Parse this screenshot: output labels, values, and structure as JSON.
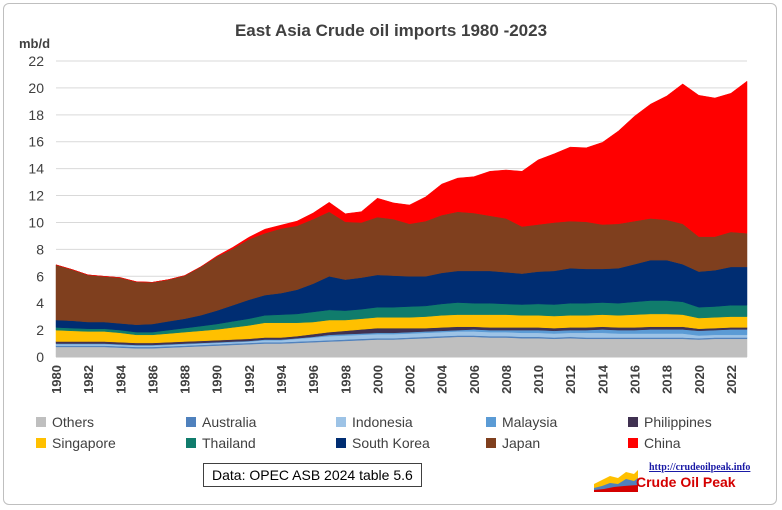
{
  "chart_data": {
    "type": "area",
    "stacked": true,
    "title": "East Asia Crude oil imports 1980 -2023",
    "ylabel": "mb/d",
    "ylim": [
      0,
      22
    ],
    "yticks": [
      0,
      2,
      4,
      6,
      8,
      10,
      12,
      14,
      16,
      18,
      20,
      22
    ],
    "x": [
      1980,
      1981,
      1982,
      1983,
      1984,
      1985,
      1986,
      1987,
      1988,
      1989,
      1990,
      1991,
      1992,
      1993,
      1994,
      1995,
      1996,
      1997,
      1998,
      1999,
      2000,
      2001,
      2002,
      2003,
      2004,
      2005,
      2006,
      2007,
      2008,
      2009,
      2010,
      2011,
      2012,
      2013,
      2014,
      2015,
      2016,
      2017,
      2018,
      2019,
      2020,
      2021,
      2022,
      2023
    ],
    "xticks": [
      "1980",
      "1982",
      "1984",
      "1986",
      "1988",
      "1990",
      "1992",
      "1994",
      "1996",
      "1998",
      "2000",
      "2002",
      "2004",
      "2006",
      "2008",
      "2010",
      "2012",
      "2014",
      "2016",
      "2018",
      "2020",
      "2022"
    ],
    "legend_position": "bottom",
    "grid": true,
    "series": [
      {
        "name": "Others",
        "color": "#bfbfbf",
        "values": [
          0.75,
          0.75,
          0.75,
          0.75,
          0.7,
          0.65,
          0.65,
          0.7,
          0.75,
          0.8,
          0.85,
          0.9,
          0.95,
          1.0,
          1.0,
          1.05,
          1.1,
          1.15,
          1.2,
          1.25,
          1.3,
          1.3,
          1.35,
          1.4,
          1.45,
          1.5,
          1.5,
          1.45,
          1.45,
          1.4,
          1.4,
          1.35,
          1.4,
          1.35,
          1.35,
          1.35,
          1.35,
          1.35,
          1.35,
          1.35,
          1.3,
          1.35,
          1.35,
          1.35
        ]
      },
      {
        "name": "Australia",
        "color": "#4f81bd",
        "values": [
          0.1,
          0.1,
          0.1,
          0.1,
          0.1,
          0.1,
          0.1,
          0.1,
          0.1,
          0.1,
          0.1,
          0.1,
          0.1,
          0.1,
          0.1,
          0.1,
          0.1,
          0.1,
          0.1,
          0.1,
          0.1,
          0.1,
          0.1,
          0.1,
          0.1,
          0.1,
          0.1,
          0.1,
          0.1,
          0.1,
          0.1,
          0.1,
          0.1,
          0.1,
          0.1,
          0.1,
          0.1,
          0.1,
          0.1,
          0.1,
          0.1,
          0.1,
          0.1,
          0.1
        ]
      },
      {
        "name": "Indonesia",
        "color": "#9dc3e6",
        "values": [
          0.1,
          0.1,
          0.1,
          0.1,
          0.1,
          0.1,
          0.1,
          0.1,
          0.1,
          0.1,
          0.1,
          0.1,
          0.1,
          0.15,
          0.15,
          0.2,
          0.25,
          0.3,
          0.3,
          0.3,
          0.3,
          0.3,
          0.3,
          0.3,
          0.3,
          0.3,
          0.3,
          0.3,
          0.3,
          0.3,
          0.3,
          0.3,
          0.3,
          0.35,
          0.35,
          0.3,
          0.3,
          0.3,
          0.3,
          0.3,
          0.2,
          0.2,
          0.2,
          0.2
        ]
      },
      {
        "name": "Malaysia",
        "color": "#5b9bd5",
        "values": [
          0.05,
          0.05,
          0.05,
          0.05,
          0.05,
          0.05,
          0.05,
          0.05,
          0.05,
          0.05,
          0.05,
          0.05,
          0.05,
          0.05,
          0.05,
          0.05,
          0.05,
          0.1,
          0.1,
          0.1,
          0.1,
          0.1,
          0.1,
          0.1,
          0.1,
          0.1,
          0.15,
          0.15,
          0.15,
          0.2,
          0.2,
          0.2,
          0.2,
          0.2,
          0.25,
          0.25,
          0.25,
          0.3,
          0.3,
          0.3,
          0.35,
          0.35,
          0.4,
          0.4
        ]
      },
      {
        "name": "Philippines",
        "color": "#403151",
        "values": [
          0.15,
          0.15,
          0.15,
          0.15,
          0.15,
          0.15,
          0.15,
          0.15,
          0.15,
          0.15,
          0.15,
          0.15,
          0.15,
          0.15,
          0.15,
          0.15,
          0.2,
          0.2,
          0.25,
          0.3,
          0.35,
          0.35,
          0.3,
          0.25,
          0.25,
          0.25,
          0.2,
          0.2,
          0.2,
          0.2,
          0.2,
          0.2,
          0.2,
          0.2,
          0.2,
          0.2,
          0.2,
          0.2,
          0.2,
          0.2,
          0.15,
          0.15,
          0.15,
          0.15
        ]
      },
      {
        "name": "Singapore",
        "color": "#ffc000",
        "values": [
          0.85,
          0.8,
          0.75,
          0.75,
          0.7,
          0.6,
          0.6,
          0.65,
          0.7,
          0.75,
          0.8,
          0.9,
          1.0,
          1.1,
          1.1,
          1.0,
          0.9,
          0.9,
          0.8,
          0.8,
          0.8,
          0.8,
          0.8,
          0.85,
          0.9,
          0.9,
          0.9,
          0.95,
          0.95,
          0.9,
          0.9,
          0.9,
          0.9,
          0.9,
          0.9,
          0.9,
          0.95,
          0.95,
          0.95,
          0.9,
          0.8,
          0.8,
          0.8,
          0.8
        ]
      },
      {
        "name": "Thailand",
        "color": "#107c6c",
        "values": [
          0.2,
          0.2,
          0.2,
          0.2,
          0.2,
          0.2,
          0.2,
          0.25,
          0.3,
          0.35,
          0.4,
          0.45,
          0.5,
          0.55,
          0.6,
          0.65,
          0.75,
          0.75,
          0.7,
          0.7,
          0.75,
          0.75,
          0.8,
          0.8,
          0.85,
          0.9,
          0.85,
          0.85,
          0.8,
          0.8,
          0.85,
          0.85,
          0.9,
          0.9,
          0.9,
          0.9,
          0.95,
          1.0,
          1.0,
          0.95,
          0.8,
          0.8,
          0.85,
          0.85
        ]
      },
      {
        "name": "South Korea",
        "color": "#002d72",
        "values": [
          0.55,
          0.55,
          0.5,
          0.5,
          0.5,
          0.55,
          0.6,
          0.65,
          0.7,
          0.8,
          1.0,
          1.2,
          1.4,
          1.5,
          1.6,
          1.8,
          2.1,
          2.5,
          2.3,
          2.35,
          2.4,
          2.35,
          2.25,
          2.2,
          2.3,
          2.35,
          2.4,
          2.4,
          2.35,
          2.3,
          2.4,
          2.5,
          2.6,
          2.55,
          2.5,
          2.6,
          2.8,
          3.0,
          3.0,
          2.8,
          2.65,
          2.7,
          2.85,
          2.85
        ]
      },
      {
        "name": "Japan",
        "color": "#7f3f1e",
        "values": [
          4.1,
          3.8,
          3.5,
          3.4,
          3.4,
          3.2,
          3.1,
          3.1,
          3.2,
          3.6,
          4.0,
          4.2,
          4.5,
          4.6,
          4.8,
          4.75,
          4.8,
          4.8,
          4.3,
          4.1,
          4.3,
          4.2,
          3.9,
          4.1,
          4.3,
          4.4,
          4.3,
          4.1,
          4.0,
          3.5,
          3.5,
          3.6,
          3.5,
          3.5,
          3.3,
          3.3,
          3.2,
          3.1,
          3.0,
          3.0,
          2.6,
          2.5,
          2.6,
          2.5
        ]
      },
      {
        "name": "China",
        "color": "#ff0000",
        "values": [
          0,
          0,
          0,
          0,
          0,
          0,
          0,
          0,
          0,
          0,
          0.05,
          0.1,
          0.15,
          0.3,
          0.25,
          0.35,
          0.45,
          0.7,
          0.6,
          0.8,
          1.4,
          1.2,
          1.4,
          1.8,
          2.3,
          2.5,
          2.7,
          3.3,
          3.6,
          4.1,
          4.8,
          5.1,
          5.5,
          5.5,
          6.1,
          6.9,
          7.8,
          8.5,
          9.2,
          10.4,
          10.5,
          10.3,
          10.3,
          11.3
        ]
      }
    ]
  },
  "source_note": "Data: OPEC ASB 2024 table 5.6",
  "logo": {
    "url": "http://crudeoilpeak.info",
    "name": "Crude Oil Peak"
  }
}
